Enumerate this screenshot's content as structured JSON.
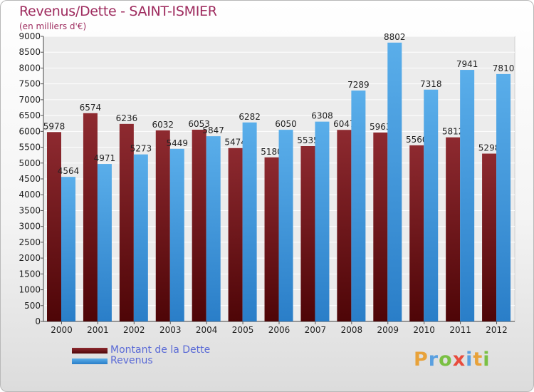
{
  "header": {
    "title": "Revenus/Dette - SAINT-ISMIER",
    "subtitle": "(en milliers d'€)"
  },
  "chart_data": {
    "type": "bar",
    "categories": [
      "2000",
      "2001",
      "2002",
      "2003",
      "2004",
      "2005",
      "2006",
      "2007",
      "2008",
      "2009",
      "2010",
      "2011",
      "2012"
    ],
    "series": [
      {
        "name": "Montant de la Dette",
        "color": "#7a1418",
        "values": [
          5978,
          6574,
          6236,
          6032,
          6053,
          5474,
          5180,
          5535,
          6047,
          5963,
          5560,
          5812,
          5298
        ]
      },
      {
        "name": "Revenus",
        "color": "#4a9fe3",
        "values": [
          4564,
          4971,
          5273,
          5449,
          5847,
          6282,
          6050,
          6308,
          7289,
          8802,
          7318,
          7941,
          7810
        ]
      }
    ],
    "ylim": [
      0,
      9000
    ],
    "ytick_step": 500,
    "grid": true,
    "legend_position": "bottom-left"
  },
  "legend": {
    "debt_label": "Montant de la Dette",
    "revenue_label": "Revenus"
  },
  "logo": {
    "letters": [
      "P",
      "r",
      "o",
      "x",
      "i",
      "t",
      "i"
    ],
    "colors": [
      "#e8a23a",
      "#5aa0e0",
      "#7ac043",
      "#e84c3d",
      "#5aa0e0",
      "#e8a23a",
      "#7ac043"
    ]
  }
}
